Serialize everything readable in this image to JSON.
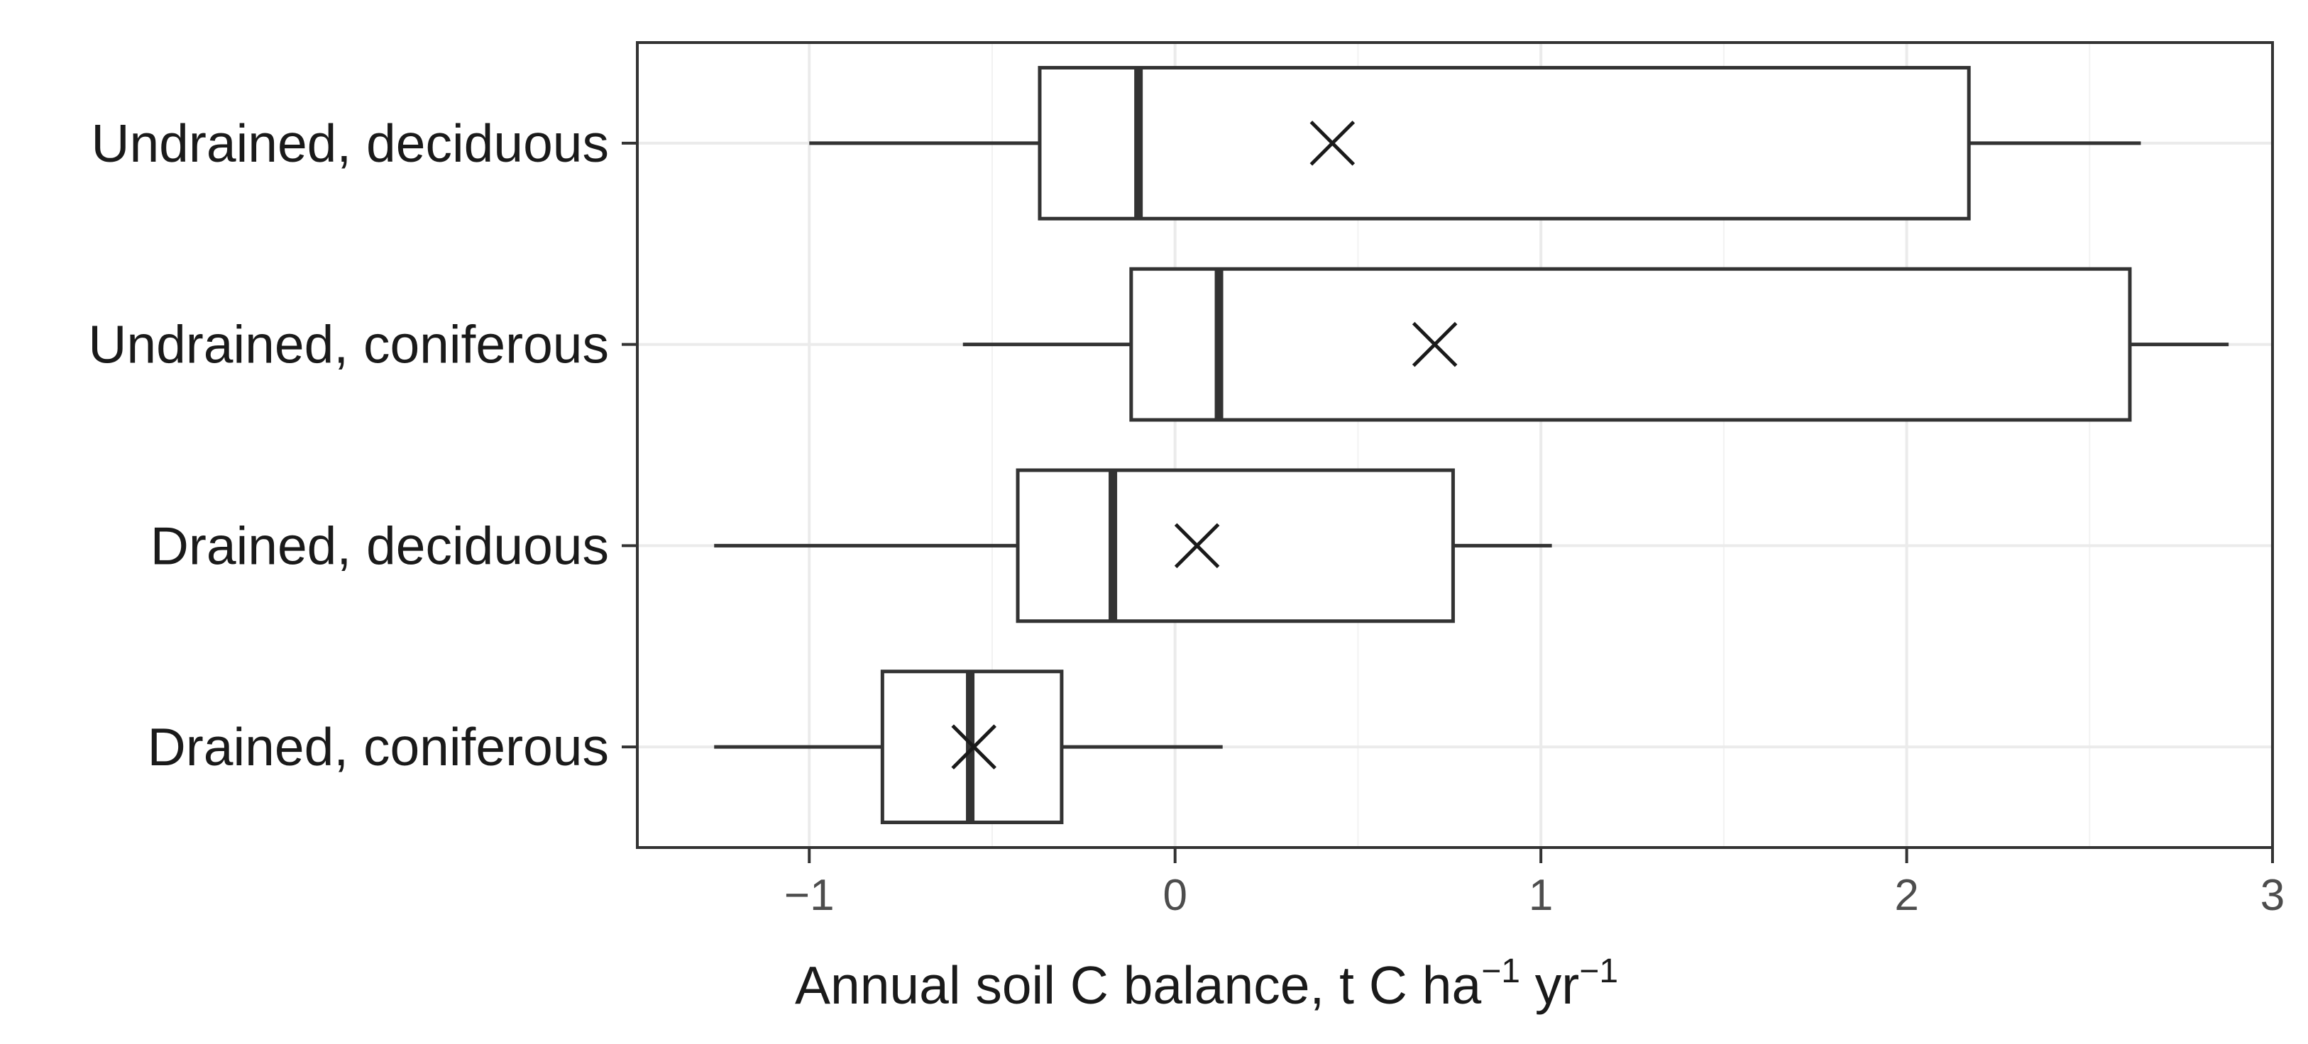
{
  "chart_data": {
    "type": "boxplot",
    "orientation": "horizontal",
    "categories": [
      "Undrained, deciduous",
      "Undrained, coniferous",
      "Drained, deciduous",
      "Drained, coniferous"
    ],
    "boxes": [
      {
        "category": "Undrained, deciduous",
        "whisker_low": -1.0,
        "q1": -0.37,
        "median": -0.1,
        "q3": 2.17,
        "whisker_high": 2.64,
        "mean": 0.43
      },
      {
        "category": "Undrained, coniferous",
        "whisker_low": -0.58,
        "q1": -0.12,
        "median": 0.12,
        "q3": 2.61,
        "whisker_high": 2.88,
        "mean": 0.71
      },
      {
        "category": "Drained, deciduous",
        "whisker_low": -1.26,
        "q1": -0.43,
        "median": -0.17,
        "q3": 0.76,
        "whisker_high": 1.03,
        "mean": 0.06
      },
      {
        "category": "Drained, coniferous",
        "whisker_low": -1.26,
        "q1": -0.8,
        "median": -0.56,
        "q3": -0.31,
        "whisker_high": 0.13,
        "mean": -0.55
      }
    ],
    "xlim": [
      -1.47,
      3.0
    ],
    "xticks": [
      -1,
      0,
      1,
      2,
      3
    ],
    "xtick_labels": [
      "−1",
      "0",
      "1",
      "2",
      "3"
    ],
    "xlabel": {
      "base": "Annual soil C balance, t C ha",
      "sup1": "−1",
      "mid": " yr",
      "sup2": "−1"
    },
    "grid": true,
    "mean_marker": "x"
  }
}
